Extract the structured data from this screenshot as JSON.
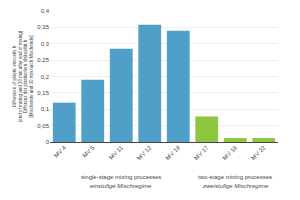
{
  "chart_data": {
    "type": "bar",
    "categories": [
      "MV 4",
      "MV 5",
      "MV 11",
      "MV 12",
      "MV 19",
      "MV 17",
      "MV 18",
      "MV 22"
    ],
    "values": [
      0.12,
      0.19,
      0.285,
      0.358,
      0.34,
      0.078,
      0.012,
      0.012
    ],
    "colors": [
      "#4f9fc8",
      "#4f9fc8",
      "#4f9fc8",
      "#4f9fc8",
      "#4f9fc8",
      "#8dc63f",
      "#8dc63f",
      "#8dc63f"
    ],
    "ylabel": "Difference of plastic viscosity h\n(end of mixing and 30 min after end of mixing)\nDifferenz der plastischen Viskosität h\n[Mischende und 30 min nach Mischende]",
    "annotations": [
      {
        "text": "single-stage mixing processes",
        "categories": [
          "MV 4",
          "MV 5",
          "MV 11",
          "MV 12",
          "MV 19"
        ]
      },
      {
        "text": "einstufige Mischregime",
        "categories": [
          "MV 4",
          "MV 5",
          "MV 11",
          "MV 12",
          "MV 19"
        ]
      },
      {
        "text": "two-stage mixing processes",
        "categories": [
          "MV 17",
          "MV 18",
          "MV 22"
        ]
      },
      {
        "text": "zweistufige Mischregime",
        "categories": [
          "MV 17",
          "MV 18",
          "MV 22"
        ]
      }
    ],
    "ylim": [
      0,
      0.4
    ],
    "yticks": [
      0,
      {
        "value": 0.05,
        "label": "0,05"
      },
      {
        "value": 0.1,
        "label": "0,1"
      },
      {
        "value": 0.15,
        "label": "0,15"
      },
      {
        "value": 0.2,
        "label": "0,2"
      },
      {
        "value": 0.25,
        "label": "0,25"
      },
      {
        "value": 0.3,
        "label": "0,3"
      },
      {
        "value": 0.35,
        "label": "0,35"
      },
      {
        "value": 0.4,
        "label": "0,4"
      }
    ],
    "grid": true
  }
}
